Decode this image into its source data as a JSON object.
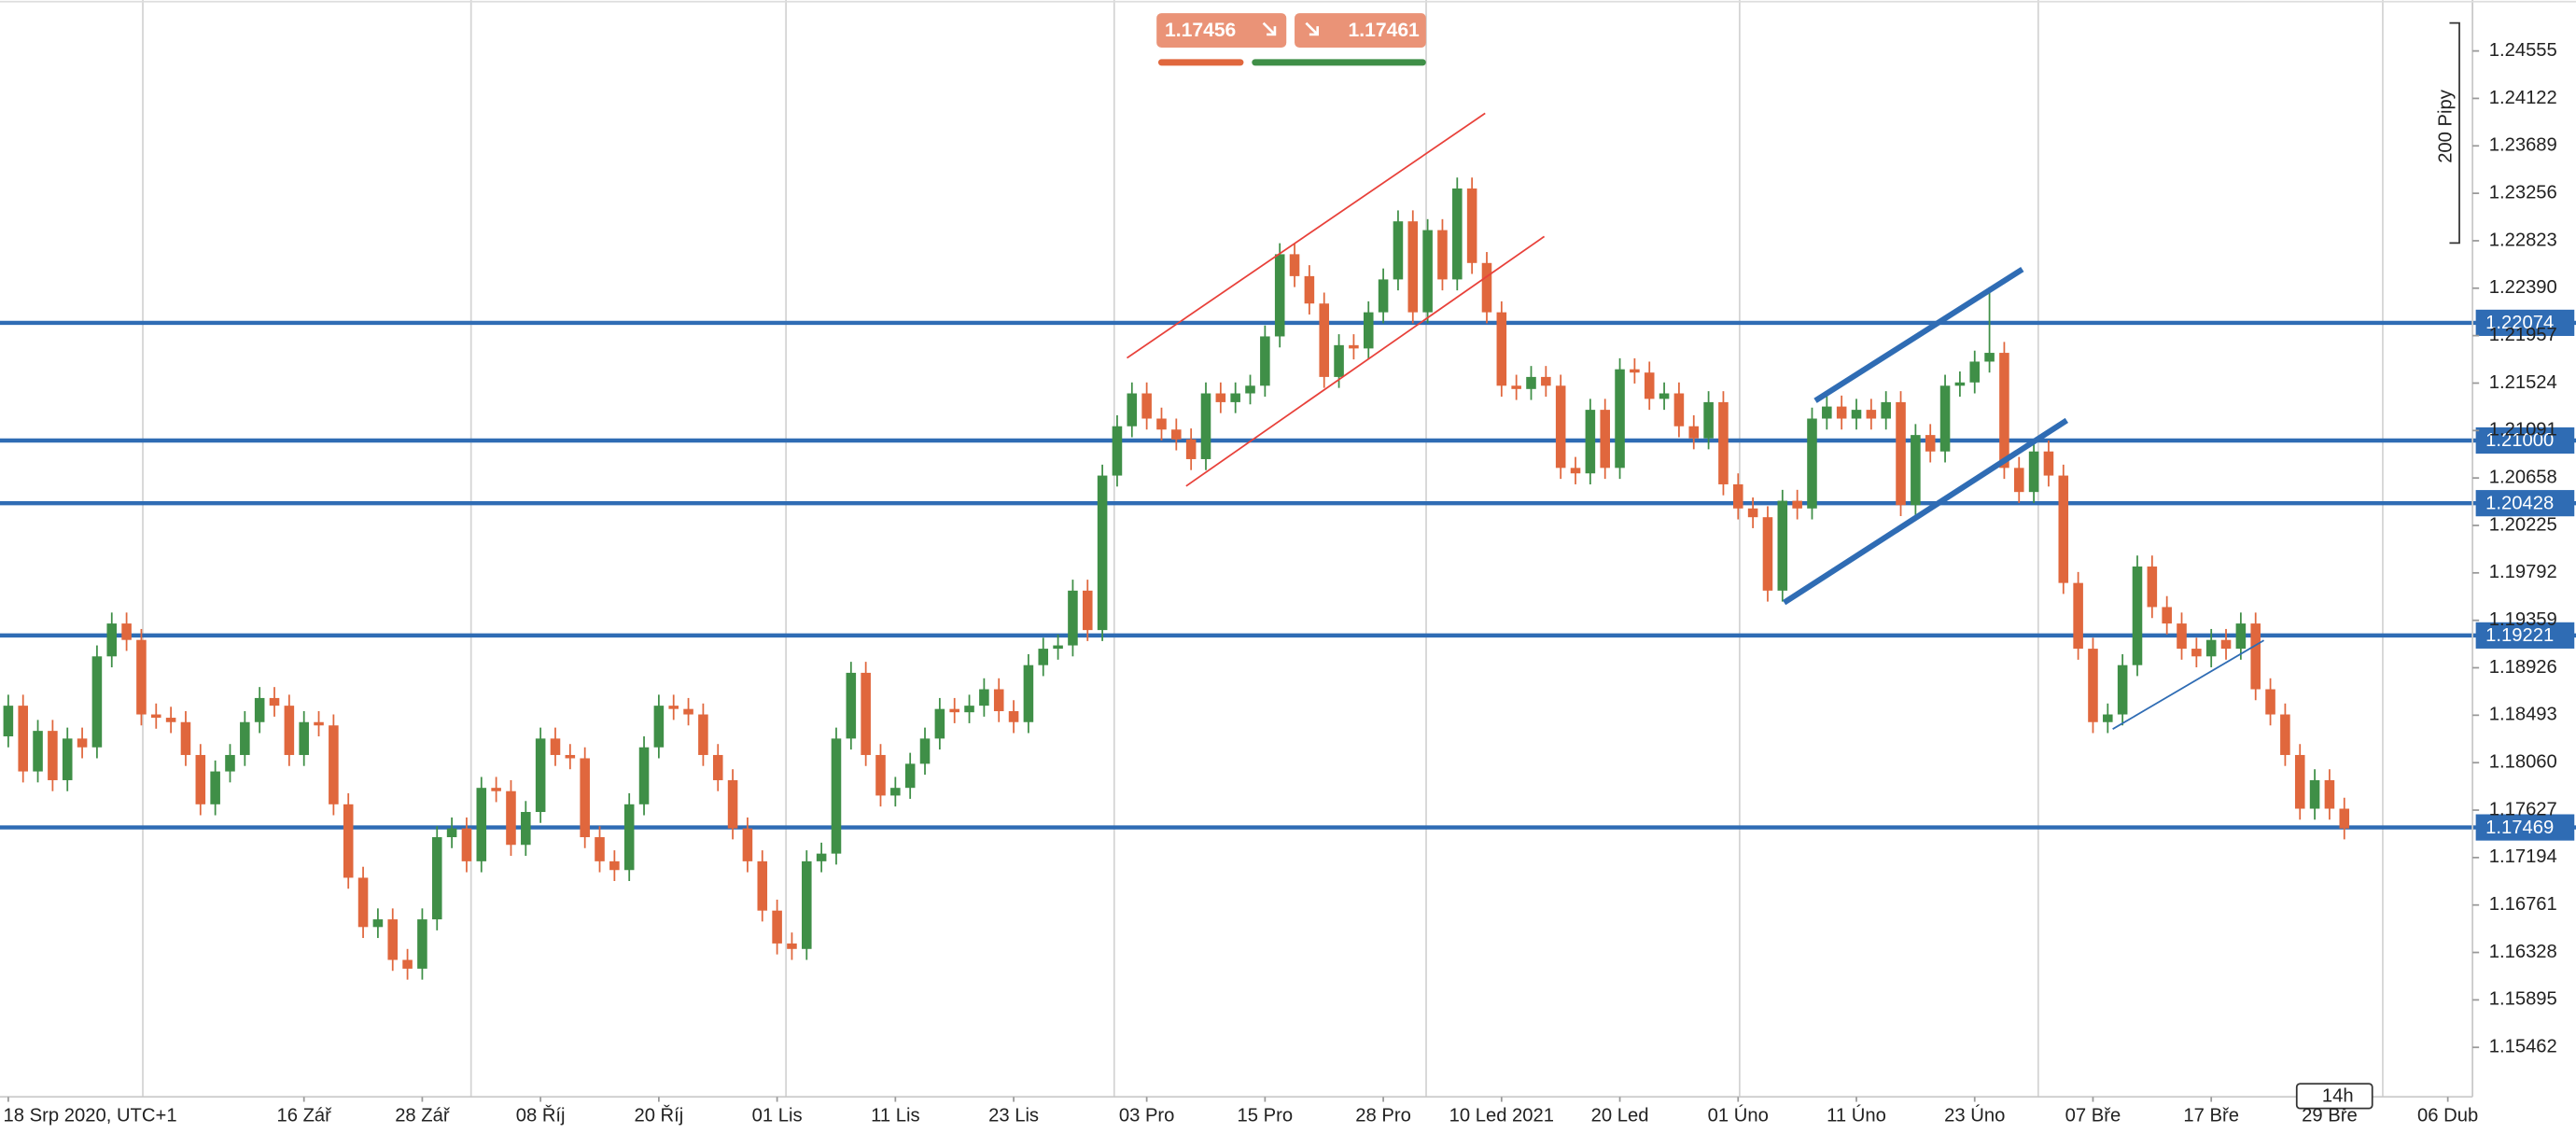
{
  "chart_data": {
    "type": "candlestick",
    "sell_price": "1.17456",
    "buy_price": "1.17461",
    "range_label": "200 Pipy",
    "timeframe": "14h",
    "up_color": "#3f8f47",
    "down_color": "#e0673d",
    "level_color": "#2f6cb4",
    "ylim": [
      1.1501,
      1.2502
    ],
    "yticks": [
      1.24555,
      1.24122,
      1.23689,
      1.23256,
      1.22823,
      {
        "value": 1.2239,
        "label": "1.22390"
      },
      1.21957,
      1.21524,
      1.21091,
      1.20658,
      1.20225,
      1.19792,
      1.19359,
      1.18926,
      1.18493,
      {
        "value": 1.1806,
        "label": "1.18060"
      },
      1.17627,
      1.17194,
      1.16761,
      1.16328,
      1.15895,
      1.15462
    ],
    "levels": [
      1.22074,
      {
        "value": 1.21,
        "label": "1.21000"
      },
      1.20428,
      1.19221,
      1.17469
    ],
    "xlim": [
      -0.56,
      166.67
    ],
    "xticks": [
      {
        "value": 0,
        "label": "18 Srp 2020, UTC+1"
      },
      {
        "value": 20,
        "label": "16 Zář"
      },
      {
        "value": 28,
        "label": "28 Zář"
      },
      {
        "value": 36,
        "label": "08 Říj"
      },
      {
        "value": 44,
        "label": "20 Říj"
      },
      {
        "value": 52,
        "label": "01 Lis"
      },
      {
        "value": 60,
        "label": "11 Lis"
      },
      {
        "value": 68,
        "label": "23 Lis"
      },
      {
        "value": 77,
        "label": "03 Pro"
      },
      {
        "value": 85,
        "label": "15 Pro"
      },
      {
        "value": 93,
        "label": "28 Pro"
      },
      {
        "value": 101,
        "label": "10 Led 2021"
      },
      {
        "value": 109,
        "label": "20 Led"
      },
      {
        "value": 117,
        "label": "01 Úno"
      },
      {
        "value": 125,
        "label": "11 Úno"
      },
      {
        "value": 133,
        "label": "23 Úno"
      },
      {
        "value": 141,
        "label": "07 Bře"
      },
      {
        "value": 149,
        "label": "17 Bře"
      },
      {
        "value": 157,
        "label": "29 Bře"
      },
      {
        "value": 165,
        "label": "06 Dub"
      }
    ],
    "xgrid": [
      9.1,
      31.3,
      52.6,
      74.8,
      95.9,
      117.1,
      137.3,
      160.6
    ],
    "candles": [
      [
        1.183,
        1.1868,
        1.182,
        1.1858
      ],
      [
        1.1858,
        1.1868,
        1.1788,
        1.1798
      ],
      [
        1.1798,
        1.1845,
        1.1788,
        1.1835
      ],
      [
        1.1835,
        1.1845,
        1.178,
        1.179
      ],
      [
        1.179,
        1.1838,
        1.178,
        1.1828
      ],
      [
        1.1828,
        1.1838,
        1.181,
        1.182
      ],
      [
        1.182,
        1.1913,
        1.181,
        1.1903
      ],
      [
        1.1903,
        1.1943,
        1.1893,
        1.1933
      ],
      [
        1.1933,
        1.1943,
        1.1908,
        1.1918
      ],
      [
        1.1918,
        1.1928,
        1.184,
        1.185
      ],
      [
        1.185,
        1.186,
        1.1837,
        1.1847
      ],
      [
        1.1847,
        1.1857,
        1.1833,
        1.1843
      ],
      [
        1.1843,
        1.1853,
        1.1803,
        1.1813
      ],
      [
        1.1813,
        1.1823,
        1.1758,
        1.1768
      ],
      [
        1.1768,
        1.1808,
        1.1758,
        1.1798
      ],
      [
        1.1798,
        1.1823,
        1.1788,
        1.1813
      ],
      [
        1.1813,
        1.1853,
        1.1803,
        1.1843
      ],
      [
        1.1843,
        1.1875,
        1.1833,
        1.1865
      ],
      [
        1.1865,
        1.1875,
        1.1848,
        1.1858
      ],
      [
        1.1858,
        1.1868,
        1.1803,
        1.1813
      ],
      [
        1.1813,
        1.1853,
        1.1803,
        1.1843
      ],
      [
        1.1843,
        1.1853,
        1.183,
        1.184
      ],
      [
        1.184,
        1.185,
        1.1758,
        1.1768
      ],
      [
        1.1768,
        1.1778,
        1.1691,
        1.1701
      ],
      [
        1.1701,
        1.1711,
        1.1646,
        1.1656
      ],
      [
        1.1656,
        1.1673,
        1.1646,
        1.1663
      ],
      [
        1.1663,
        1.1673,
        1.1616,
        1.1626
      ],
      [
        1.1626,
        1.1636,
        1.1608,
        1.1618
      ],
      [
        1.1618,
        1.1673,
        1.1608,
        1.1663
      ],
      [
        1.1663,
        1.1748,
        1.1653,
        1.1738
      ],
      [
        1.1738,
        1.1756,
        1.1728,
        1.1746
      ],
      [
        1.1746,
        1.1756,
        1.1706,
        1.1716
      ],
      [
        1.1716,
        1.1793,
        1.1706,
        1.1783
      ],
      [
        1.1783,
        1.1793,
        1.177,
        1.178
      ],
      [
        1.178,
        1.179,
        1.1721,
        1.1731
      ],
      [
        1.1731,
        1.1771,
        1.1721,
        1.1761
      ],
      [
        1.1761,
        1.1838,
        1.1751,
        1.1828
      ],
      [
        1.1828,
        1.1838,
        1.1803,
        1.1813
      ],
      [
        1.1813,
        1.1823,
        1.18,
        1.181
      ],
      [
        1.181,
        1.182,
        1.1728,
        1.1738
      ],
      [
        1.1738,
        1.1748,
        1.1706,
        1.1716
      ],
      [
        1.1716,
        1.1726,
        1.1698,
        1.1708
      ],
      [
        1.1708,
        1.1778,
        1.1698,
        1.1768
      ],
      [
        1.1768,
        1.183,
        1.1758,
        1.182
      ],
      [
        1.182,
        1.1868,
        1.181,
        1.1858
      ],
      [
        1.1858,
        1.1868,
        1.1845,
        1.1855
      ],
      [
        1.1855,
        1.1865,
        1.184,
        1.185
      ],
      [
        1.185,
        1.186,
        1.1803,
        1.1813
      ],
      [
        1.1813,
        1.1823,
        1.178,
        1.179
      ],
      [
        1.179,
        1.18,
        1.1736,
        1.1746
      ],
      [
        1.1746,
        1.1756,
        1.1706,
        1.1716
      ],
      [
        1.1716,
        1.1726,
        1.1661,
        1.1671
      ],
      [
        1.1671,
        1.1681,
        1.1631,
        1.1641
      ],
      [
        1.1641,
        1.1651,
        1.1626,
        1.1636
      ],
      [
        1.1636,
        1.1726,
        1.1626,
        1.1716
      ],
      [
        1.1716,
        1.1733,
        1.1706,
        1.1723
      ],
      [
        1.1723,
        1.1838,
        1.1713,
        1.1828
      ],
      [
        1.1828,
        1.1898,
        1.1818,
        1.1888
      ],
      [
        1.1888,
        1.1898,
        1.1803,
        1.1813
      ],
      [
        1.1813,
        1.1823,
        1.1766,
        1.1776
      ],
      [
        1.1776,
        1.1793,
        1.1766,
        1.1783
      ],
      [
        1.1783,
        1.1815,
        1.1773,
        1.1805
      ],
      [
        1.1805,
        1.1838,
        1.1795,
        1.1828
      ],
      [
        1.1828,
        1.1865,
        1.1818,
        1.1855
      ],
      [
        1.1855,
        1.1865,
        1.1842,
        1.1852
      ],
      [
        1.1852,
        1.1868,
        1.1842,
        1.1858
      ],
      [
        1.1858,
        1.1883,
        1.1848,
        1.1873
      ],
      [
        1.1873,
        1.1883,
        1.1843,
        1.1853
      ],
      [
        1.1853,
        1.1863,
        1.1833,
        1.1843
      ],
      [
        1.1843,
        1.1905,
        1.1833,
        1.1895
      ],
      [
        1.1895,
        1.192,
        1.1885,
        1.191
      ],
      [
        1.191,
        1.1923,
        1.19,
        1.1913
      ],
      [
        1.1913,
        1.1973,
        1.1903,
        1.1963
      ],
      [
        1.1963,
        1.1973,
        1.1917,
        1.1927
      ],
      [
        1.1927,
        1.2078,
        1.1917,
        1.2068
      ],
      [
        1.2068,
        1.2123,
        1.2058,
        1.2113
      ],
      [
        1.2113,
        1.2153,
        1.2103,
        1.2143
      ],
      [
        1.2143,
        1.2153,
        1.211,
        1.212
      ],
      [
        1.212,
        1.213,
        1.21,
        1.211
      ],
      [
        1.211,
        1.212,
        1.2091,
        1.2101
      ],
      [
        1.2101,
        1.2111,
        1.2073,
        1.2083
      ],
      [
        1.2083,
        1.2153,
        1.2073,
        1.2143
      ],
      [
        1.2143,
        1.2153,
        1.2125,
        1.2135
      ],
      [
        1.2135,
        1.2153,
        1.2125,
        1.2143
      ],
      [
        1.2143,
        1.216,
        1.2133,
        1.215
      ],
      [
        1.215,
        1.2205,
        1.214,
        1.2195
      ],
      [
        1.2195,
        1.228,
        1.2185,
        1.227
      ],
      [
        1.227,
        1.228,
        1.224,
        1.225
      ],
      [
        1.225,
        1.226,
        1.2215,
        1.2225
      ],
      [
        1.2225,
        1.2235,
        1.2148,
        1.2158
      ],
      [
        1.2158,
        1.2197,
        1.2148,
        1.2187
      ],
      [
        1.2187,
        1.2197,
        1.2174,
        1.2184
      ],
      [
        1.2184,
        1.2227,
        1.2174,
        1.2217
      ],
      [
        1.2217,
        1.2257,
        1.2207,
        1.2247
      ],
      [
        1.2247,
        1.231,
        1.2237,
        1.23
      ],
      [
        1.23,
        1.231,
        1.2207,
        1.2217
      ],
      [
        1.2217,
        1.2302,
        1.2207,
        1.2292
      ],
      [
        1.2292,
        1.2302,
        1.2237,
        1.2247
      ],
      [
        1.2247,
        1.234,
        1.2237,
        1.233
      ],
      [
        1.233,
        1.234,
        1.2252,
        1.2262
      ],
      [
        1.2262,
        1.2272,
        1.2207,
        1.2217
      ],
      [
        1.2217,
        1.2227,
        1.214,
        1.215
      ],
      [
        1.215,
        1.216,
        1.2137,
        1.2147
      ],
      [
        1.2147,
        1.2168,
        1.2137,
        1.2158
      ],
      [
        1.2158,
        1.2168,
        1.214,
        1.215
      ],
      [
        1.215,
        1.216,
        1.2065,
        1.2075
      ],
      [
        1.2075,
        1.2085,
        1.206,
        1.207
      ],
      [
        1.207,
        1.2138,
        1.206,
        1.2128
      ],
      [
        1.2128,
        1.2138,
        1.2065,
        1.2075
      ],
      [
        1.2075,
        1.2175,
        1.2065,
        1.2165
      ],
      [
        1.2165,
        1.2175,
        1.2152,
        1.2162
      ],
      [
        1.2162,
        1.2172,
        1.2128,
        1.2138
      ],
      [
        1.2138,
        1.2153,
        1.2128,
        1.2143
      ],
      [
        1.2143,
        1.2153,
        1.2103,
        1.2113
      ],
      [
        1.2113,
        1.2123,
        1.2092,
        1.2102
      ],
      [
        1.2102,
        1.2145,
        1.2092,
        1.2135
      ],
      [
        1.2135,
        1.2145,
        1.205,
        1.206
      ],
      [
        1.206,
        1.207,
        1.2028,
        1.2038
      ],
      [
        1.2038,
        1.2048,
        1.202,
        1.203
      ],
      [
        1.203,
        1.204,
        1.1953,
        1.1963
      ],
      [
        1.1963,
        1.2055,
        1.1953,
        1.2045
      ],
      [
        1.2045,
        1.2055,
        1.2028,
        1.2038
      ],
      [
        1.2038,
        1.213,
        1.2028,
        1.212
      ],
      [
        1.212,
        1.2141,
        1.211,
        1.2131
      ],
      [
        1.2131,
        1.2141,
        1.211,
        1.212
      ],
      [
        1.212,
        1.2138,
        1.211,
        1.2128
      ],
      [
        1.2128,
        1.2138,
        1.211,
        1.212
      ],
      [
        1.212,
        1.2145,
        1.211,
        1.2135
      ],
      [
        1.2135,
        1.2145,
        1.2031,
        1.2041
      ],
      [
        1.2041,
        1.2115,
        1.2031,
        1.2105
      ],
      [
        1.2105,
        1.2115,
        1.208,
        1.209
      ],
      [
        1.209,
        1.216,
        1.208,
        1.215
      ],
      [
        1.215,
        1.2163,
        1.214,
        1.2153
      ],
      [
        1.2153,
        1.2182,
        1.2143,
        1.2172
      ],
      [
        1.2172,
        1.224,
        1.2162,
        1.218
      ],
      [
        1.218,
        1.219,
        1.2065,
        1.2075
      ],
      [
        1.2075,
        1.2085,
        1.2043,
        1.2053
      ],
      [
        1.2053,
        1.21,
        1.2043,
        1.209
      ],
      [
        1.209,
        1.21,
        1.2058,
        1.2068
      ],
      [
        1.2068,
        1.2078,
        1.196,
        1.197
      ],
      [
        1.197,
        1.198,
        1.19,
        1.191
      ],
      [
        1.191,
        1.192,
        1.1833,
        1.1843
      ],
      [
        1.1843,
        1.186,
        1.1833,
        1.185
      ],
      [
        1.185,
        1.1905,
        1.184,
        1.1895
      ],
      [
        1.1895,
        1.1995,
        1.1885,
        1.1985
      ],
      [
        1.1985,
        1.1995,
        1.1938,
        1.1948
      ],
      [
        1.1948,
        1.1958,
        1.1923,
        1.1933
      ],
      [
        1.1933,
        1.1943,
        1.19,
        1.191
      ],
      [
        1.191,
        1.192,
        1.1893,
        1.1903
      ],
      [
        1.1903,
        1.1928,
        1.1893,
        1.1918
      ],
      [
        1.1918,
        1.1928,
        1.19,
        1.191
      ],
      [
        1.191,
        1.1943,
        1.19,
        1.1933
      ],
      [
        1.1933,
        1.1943,
        1.1863,
        1.1873
      ],
      [
        1.1873,
        1.1883,
        1.184,
        1.185
      ],
      [
        1.185,
        1.186,
        1.1803,
        1.1813
      ],
      [
        1.1813,
        1.1823,
        1.1754,
        1.1764
      ],
      [
        1.1764,
        1.18,
        1.1754,
        1.179
      ],
      [
        1.179,
        1.18,
        1.1754,
        1.1764
      ],
      [
        1.1764,
        1.1774,
        1.1736,
        1.1746
      ]
    ]
  }
}
